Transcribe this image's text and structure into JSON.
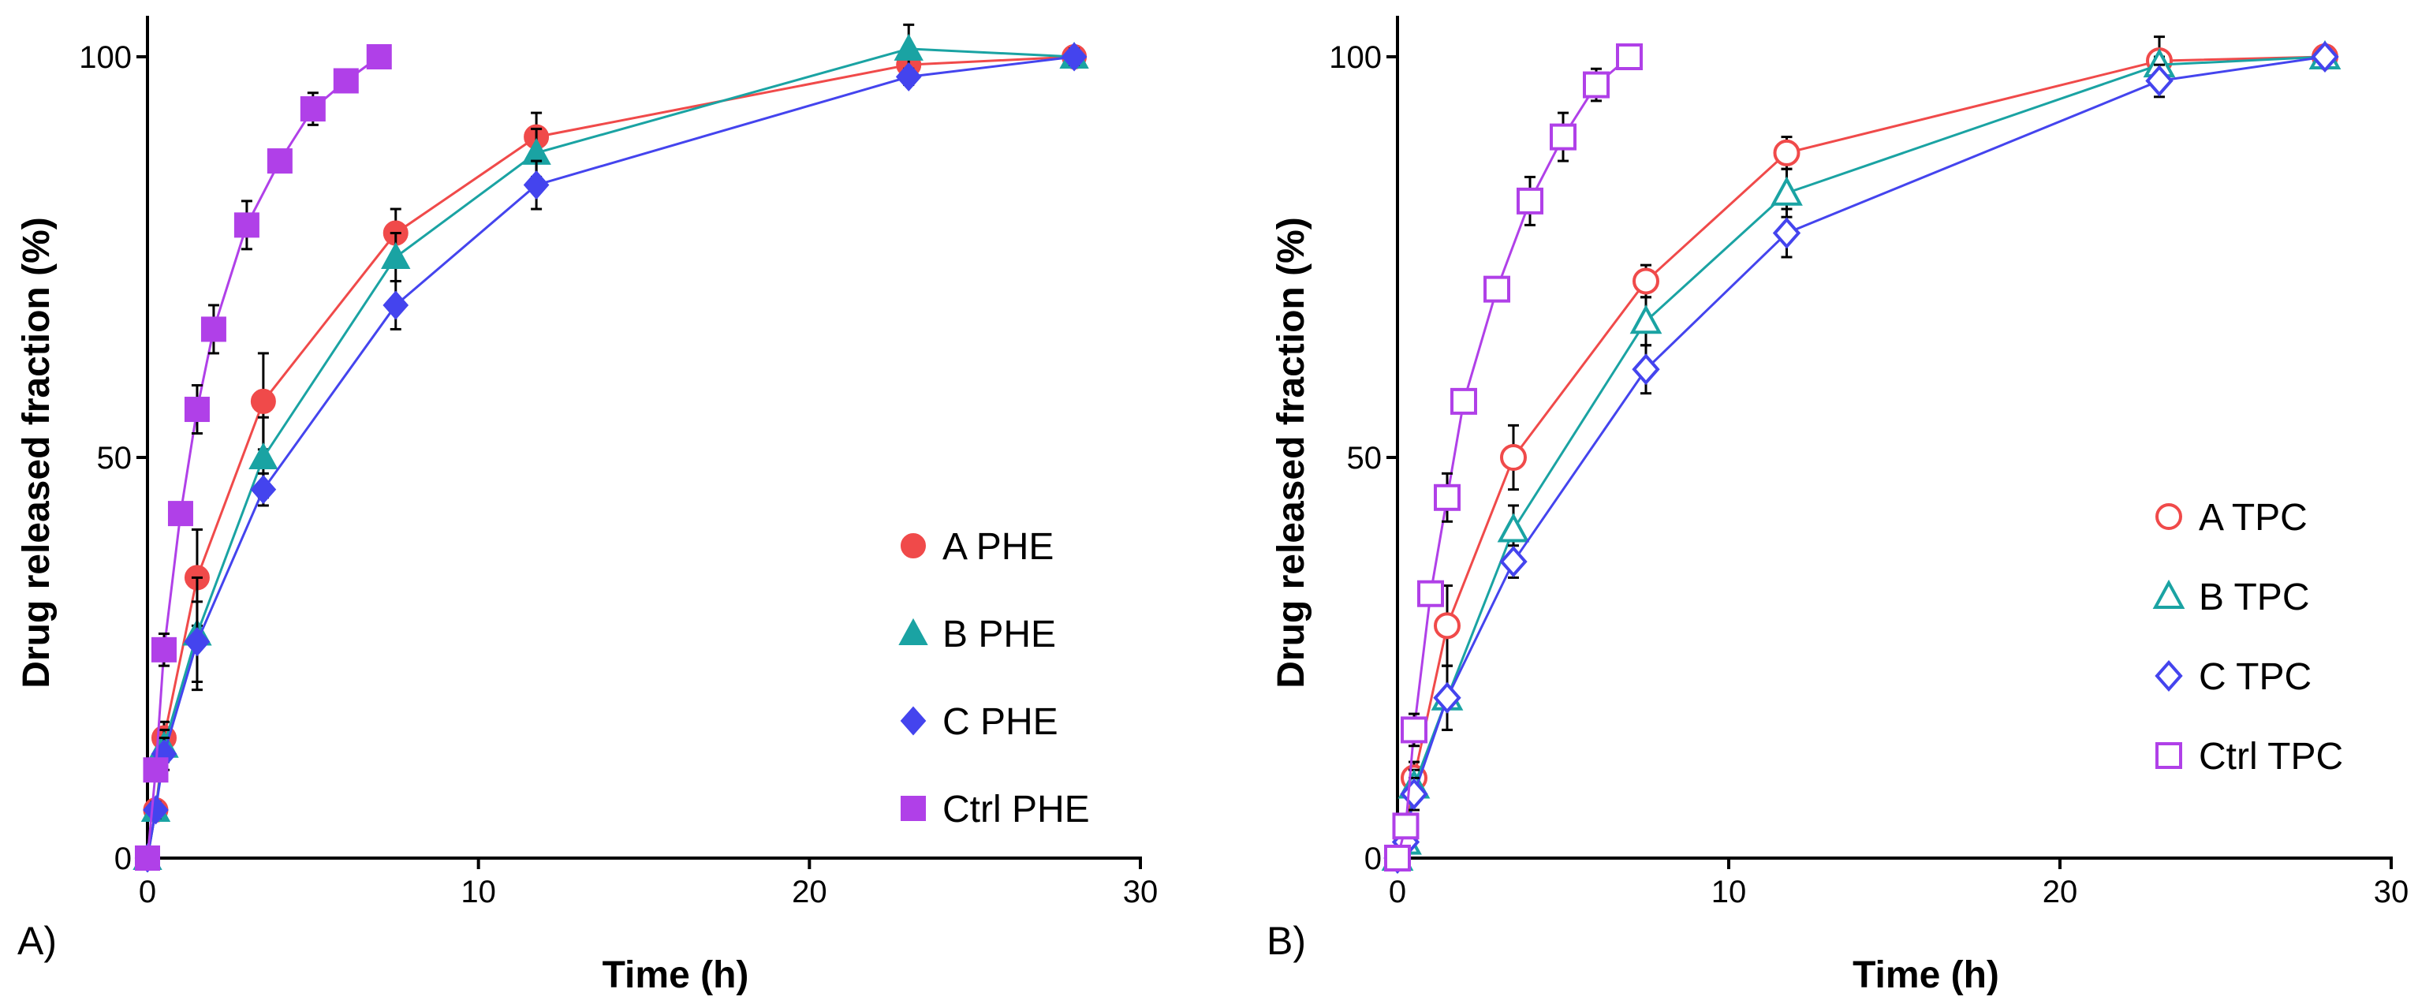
{
  "chart_data": [
    {
      "type": "line",
      "panel_label": "A)",
      "xlabel": "Time (h)",
      "ylabel": "Drug released fraction (%)",
      "xlim": [
        0,
        30
      ],
      "ylim": [
        0,
        105
      ],
      "xticks": [
        0,
        10,
        20,
        30
      ],
      "yticks": [
        0,
        50,
        100
      ],
      "legend_position": "right-center",
      "marker_style": "filled",
      "series": [
        {
          "name": "A PHE",
          "color": "#f04a4a",
          "marker": "circle",
          "x": [
            0,
            0.25,
            0.5,
            1.5,
            3.5,
            7.5,
            11.75,
            23,
            28
          ],
          "y": [
            0,
            6,
            15,
            35,
            57,
            78,
            90,
            99,
            100
          ],
          "err": [
            0,
            1,
            2,
            6,
            6,
            3,
            3,
            1,
            1
          ]
        },
        {
          "name": "B PHE",
          "color": "#1aa3a3",
          "marker": "triangle",
          "x": [
            0,
            0.25,
            0.5,
            1.5,
            3.5,
            7.5,
            11.75,
            23,
            28
          ],
          "y": [
            0,
            6,
            14,
            28,
            50,
            75,
            88,
            101,
            100
          ],
          "err": [
            0,
            1,
            2,
            7,
            5,
            3,
            3,
            3,
            1
          ]
        },
        {
          "name": "C PHE",
          "color": "#4444ee",
          "marker": "diamond",
          "x": [
            0,
            0.25,
            0.5,
            1.5,
            3.5,
            7.5,
            11.75,
            23,
            28
          ],
          "y": [
            0,
            6,
            13,
            27,
            46,
            69,
            84,
            97.5,
            100
          ],
          "err": [
            0,
            1,
            2,
            5,
            2,
            3,
            3,
            1,
            1
          ]
        },
        {
          "name": "Ctrl PHE",
          "color": "#b040e8",
          "marker": "square",
          "x": [
            0,
            0.25,
            0.5,
            1,
            1.5,
            2,
            3,
            4,
            5,
            6,
            7
          ],
          "y": [
            0,
            11,
            26,
            43,
            56,
            66,
            79,
            87,
            93.5,
            97,
            100
          ],
          "err": [
            0,
            1,
            2,
            1,
            3,
            3,
            3,
            1,
            2,
            1,
            1
          ]
        }
      ]
    },
    {
      "type": "line",
      "panel_label": "B)",
      "xlabel": "Time (h)",
      "ylabel": "Drug released fraction (%)",
      "xlim": [
        0,
        30
      ],
      "ylim": [
        0,
        105
      ],
      "xticks": [
        0,
        10,
        20,
        30
      ],
      "yticks": [
        0,
        50,
        100
      ],
      "legend_position": "right-center",
      "marker_style": "hollow",
      "series": [
        {
          "name": "A TPC",
          "color": "#f04a4a",
          "marker": "circle",
          "x": [
            0,
            0.25,
            0.5,
            1.5,
            3.5,
            7.5,
            11.75,
            23,
            28
          ],
          "y": [
            0,
            3,
            10,
            29,
            50,
            72,
            88,
            99.5,
            100
          ],
          "err": [
            0,
            1,
            2,
            5,
            4,
            2,
            2,
            3,
            1
          ]
        },
        {
          "name": "B TPC",
          "color": "#1aa3a3",
          "marker": "triangle",
          "x": [
            0,
            0.25,
            0.5,
            1.5,
            3.5,
            7.5,
            11.75,
            23,
            28
          ],
          "y": [
            0,
            2,
            9,
            20,
            41,
            67,
            83,
            99,
            100
          ],
          "err": [
            0,
            1,
            2,
            4,
            3,
            3,
            3,
            1,
            1
          ]
        },
        {
          "name": "C TPC",
          "color": "#4444ee",
          "marker": "diamond",
          "x": [
            0,
            0.25,
            0.5,
            1.5,
            3.5,
            7.5,
            11.75,
            23,
            28
          ],
          "y": [
            0,
            2,
            8,
            20,
            37,
            61,
            78,
            97,
            100
          ],
          "err": [
            0,
            1,
            2,
            4,
            2,
            3,
            3,
            2,
            1
          ]
        },
        {
          "name": "Ctrl TPC",
          "color": "#b040e8",
          "marker": "square",
          "x": [
            0,
            0.25,
            0.5,
            1,
            1.5,
            2,
            3,
            4,
            5,
            6,
            7
          ],
          "y": [
            0,
            4,
            16,
            33,
            45,
            57,
            71,
            82,
            90,
            96.5,
            100
          ],
          "err": [
            0,
            1,
            2,
            1,
            3,
            1,
            1,
            3,
            3,
            2,
            1
          ]
        }
      ]
    }
  ]
}
